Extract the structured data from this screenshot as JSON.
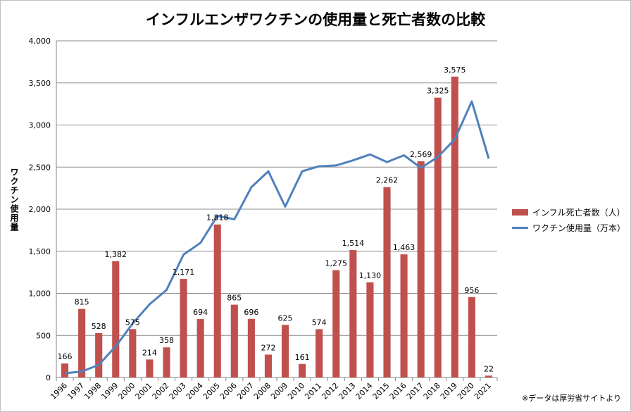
{
  "chart_data": {
    "type": "bar",
    "title": "インフルエンザワクチンの使用量と死亡者数の比較",
    "ylabel": "ワクチン使用量",
    "ylim": [
      0,
      4000
    ],
    "yticks": [
      "0",
      "500",
      "1,000",
      "1,500",
      "2,000",
      "2,500",
      "3,000",
      "3,500",
      "4,000"
    ],
    "categories": [
      "1996",
      "1997",
      "1998",
      "1999",
      "2000",
      "2001",
      "2002",
      "2003",
      "2004",
      "2005",
      "2006",
      "2007",
      "2008",
      "2009",
      "2010",
      "2011",
      "2012",
      "2013",
      "2014",
      "2015",
      "2016",
      "2017",
      "2018",
      "2019",
      "2020",
      "2021"
    ],
    "grid": true,
    "legend_position": "right",
    "series": [
      {
        "name": "インフル死亡者数（人）",
        "type": "bar",
        "color": "#c0504d",
        "values": [
          166,
          815,
          528,
          1382,
          575,
          214,
          358,
          1171,
          694,
          1818,
          865,
          696,
          272,
          625,
          161,
          574,
          1275,
          1514,
          1130,
          2262,
          1463,
          2569,
          3325,
          3575,
          956,
          22
        ],
        "labels": [
          "166",
          "815",
          "528",
          "1,382",
          "575",
          "214",
          "358",
          "1,171",
          "694",
          "1,818",
          "865",
          "696",
          "272",
          "625",
          "161",
          "574",
          "1,275",
          "1,514",
          "1,130",
          "2,262",
          "1,463",
          "2,569",
          "3,325",
          "3,575",
          "956",
          "22"
        ]
      },
      {
        "name": "ワクチン使用量（万本）",
        "type": "line",
        "color": "#4f81bd",
        "values": [
          50,
          70,
          150,
          370,
          640,
          870,
          1040,
          1460,
          1600,
          1920,
          1880,
          2260,
          2450,
          2030,
          2450,
          2510,
          2520,
          2580,
          2650,
          2560,
          2640,
          2490,
          2620,
          2830,
          3280,
          2600
        ]
      }
    ],
    "source_note": "※データは厚労省サイトより"
  }
}
